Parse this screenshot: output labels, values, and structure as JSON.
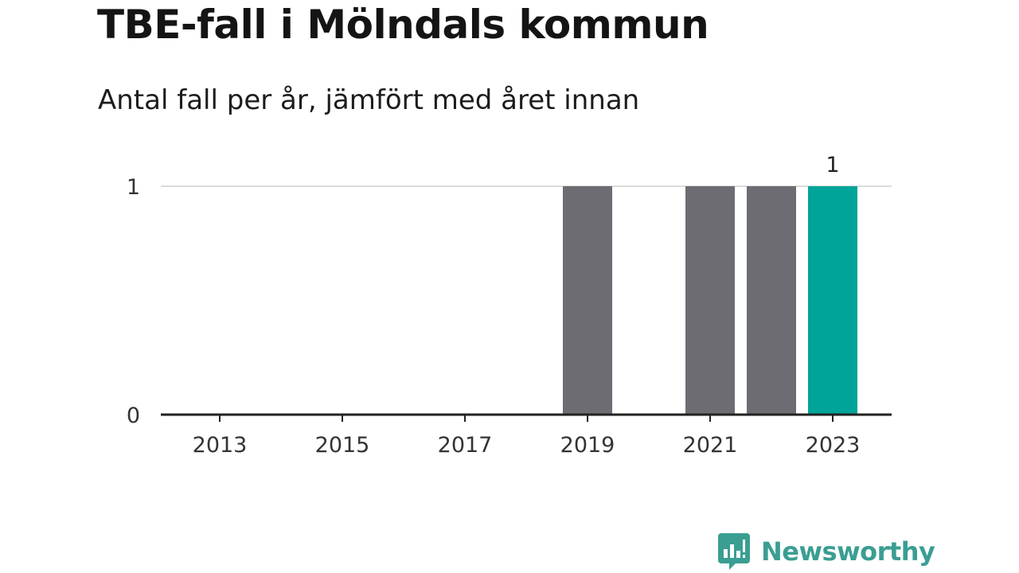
{
  "header": {
    "title": "TBE-fall i Mölndals kommun",
    "subtitle": "Antal fall per år, jämfört med året innan"
  },
  "brand": {
    "name": "Newsworthy",
    "icon": "bar-chart-speech-bubble-icon",
    "color": "#3a9e93"
  },
  "chart_data": {
    "type": "bar",
    "title": "TBE-fall i Mölndals kommun",
    "subtitle": "Antal fall per år, jämfört med året innan",
    "xlabel": "",
    "ylabel": "",
    "categories": [
      "2013",
      "2014",
      "2015",
      "2016",
      "2017",
      "2018",
      "2019",
      "2020",
      "2021",
      "2022",
      "2023"
    ],
    "x_tick_labels": [
      "2013",
      "2015",
      "2017",
      "2019",
      "2021",
      "2023"
    ],
    "values": [
      0,
      0,
      0,
      0,
      0,
      0,
      1,
      0,
      1,
      1,
      1
    ],
    "ylim": [
      0,
      1
    ],
    "y_ticks": [
      "0",
      "1"
    ],
    "grid": true,
    "highlight_category": "2023",
    "highlight_label": "1",
    "colors": {
      "bar": "#6d6c73",
      "highlight": "#00a499",
      "grid": "#dcdcdc",
      "axis": "#222222"
    }
  }
}
